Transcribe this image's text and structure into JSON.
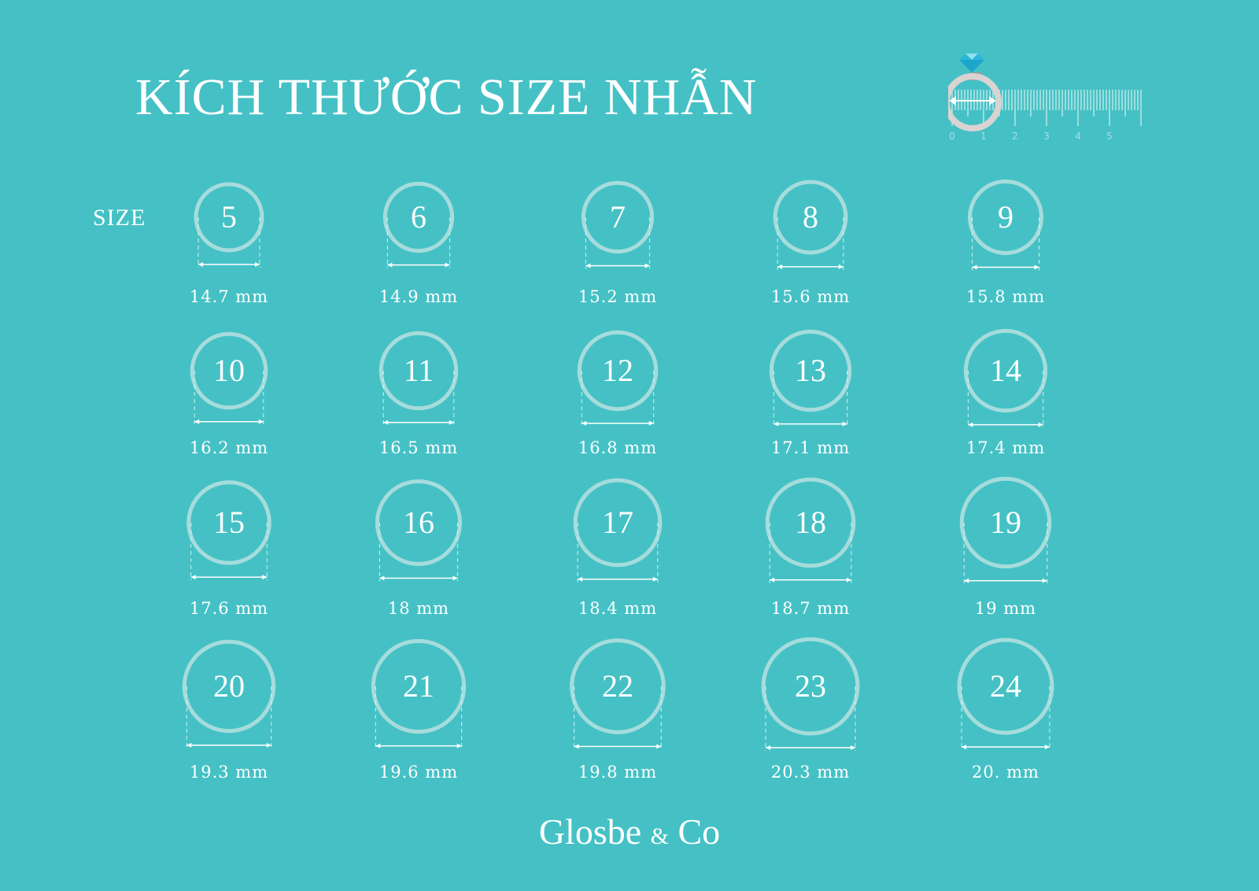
{
  "title": "KÍCH THƯỚC SIZE NHẪN",
  "size_label": "SIZE",
  "ruler": {
    "ticks": [
      "0",
      "1",
      "2",
      "3",
      "4",
      "5"
    ]
  },
  "colors": {
    "background": "#45c1c5",
    "ring": "#a6dcdc",
    "text": "#ffffff",
    "diamond": "#2bb5d8"
  },
  "rings": [
    {
      "size": "5",
      "diameter": "14.7 mm"
    },
    {
      "size": "6",
      "diameter": "14.9 mm"
    },
    {
      "size": "7",
      "diameter": "15.2 mm"
    },
    {
      "size": "8",
      "diameter": "15.6 mm"
    },
    {
      "size": "9",
      "diameter": "15.8 mm"
    },
    {
      "size": "10",
      "diameter": "16.2 mm"
    },
    {
      "size": "11",
      "diameter": "16.5 mm"
    },
    {
      "size": "12",
      "diameter": "16.8 mm"
    },
    {
      "size": "13",
      "diameter": "17.1 mm"
    },
    {
      "size": "14",
      "diameter": "17.4 mm"
    },
    {
      "size": "15",
      "diameter": "17.6 mm"
    },
    {
      "size": "16",
      "diameter": "18 mm"
    },
    {
      "size": "17",
      "diameter": "18.4 mm"
    },
    {
      "size": "18",
      "diameter": "18.7 mm"
    },
    {
      "size": "19",
      "diameter": "19 mm"
    },
    {
      "size": "20",
      "diameter": "19.3 mm"
    },
    {
      "size": "21",
      "diameter": "19.6 mm"
    },
    {
      "size": "22",
      "diameter": "19.8 mm"
    },
    {
      "size": "23",
      "diameter": "20.3 mm"
    },
    {
      "size": "24",
      "diameter": "20. mm"
    }
  ],
  "footer": {
    "brand": "Glosbe",
    "amp": "&",
    "suffix": "Co"
  }
}
